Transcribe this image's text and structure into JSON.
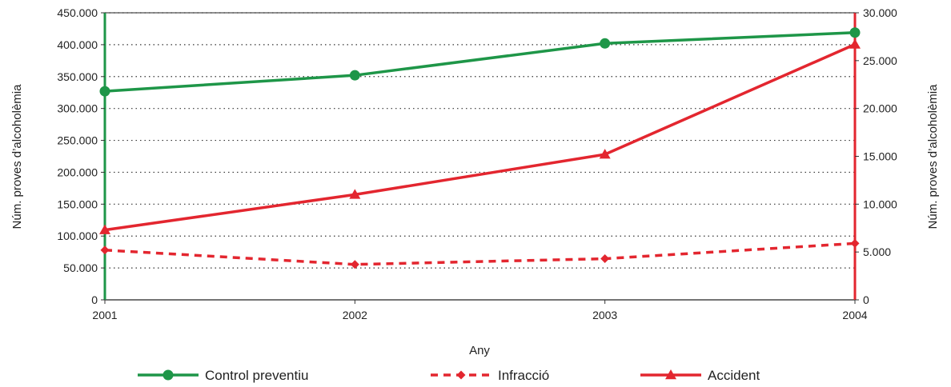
{
  "colors": {
    "green": "#1e9648",
    "red": "#e3262f",
    "grid": "#333333"
  },
  "chart_data": {
    "type": "line",
    "categories": [
      "2001",
      "2002",
      "2003",
      "2004"
    ],
    "xlabel": "Any",
    "ylabel_left": "Núm. proves d’alcoholèmia",
    "ylabel_right": "Núm. proves d’alcoholèmia",
    "ylim_left": [
      0,
      450000
    ],
    "ylim_right": [
      0,
      30000
    ],
    "yticks_left": [
      "0",
      "50.000",
      "100.000",
      "150.000",
      "200.000",
      "250.000",
      "300.000",
      "350.000",
      "400.000",
      "450.000"
    ],
    "yticks_right": [
      "0",
      "5.000",
      "10.000",
      "15.000",
      "20.000",
      "25.000",
      "30.000"
    ],
    "grid": true,
    "legend_position": "bottom",
    "series": [
      {
        "name": "Control preventiu",
        "axis": "left",
        "values": [
          327000,
          352000,
          402000,
          419000
        ],
        "color": "#1e9648",
        "style": "solid",
        "marker": "circle"
      },
      {
        "name": "Infracció",
        "axis": "right",
        "values": [
          5200,
          3700,
          4300,
          5900
        ],
        "color": "#e3262f",
        "style": "dashed",
        "marker": "diamond"
      },
      {
        "name": "Accident",
        "axis": "right",
        "values": [
          7300,
          11000,
          15200,
          26700
        ],
        "color": "#e3262f",
        "style": "solid",
        "marker": "triangle"
      }
    ]
  }
}
